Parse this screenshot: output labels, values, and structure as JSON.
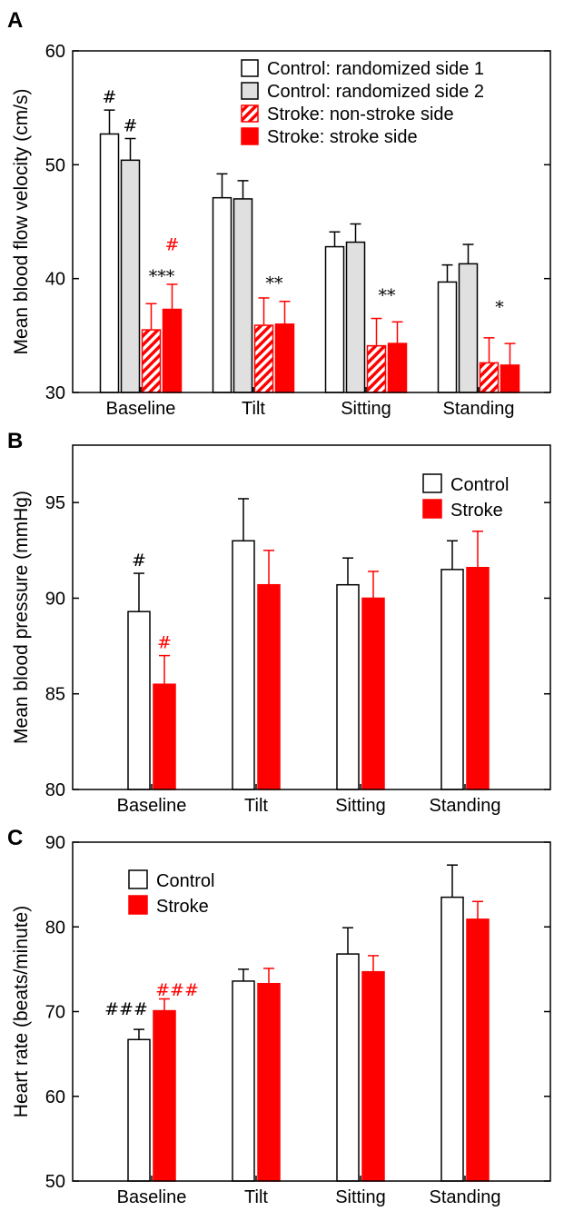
{
  "colors": {
    "control_fill": "#ffffff",
    "control2_fill": "#e0e0e0",
    "stroke": "#ff0000",
    "axis": "#000000"
  },
  "chart_data": [
    {
      "panel_label": "A",
      "type": "bar",
      "ylabel": "Mean blood flow velocity (cm/s)",
      "ylim": [
        30,
        60
      ],
      "yticks": [
        30,
        40,
        50,
        60
      ],
      "categories": [
        "Baseline",
        "Tilt",
        "Sitting",
        "Standing"
      ],
      "legend_position": "top-right",
      "series": [
        {
          "name": "Control: randomized side 1",
          "style": "control",
          "values": [
            52.7,
            47.1,
            42.8,
            39.7
          ],
          "errors": [
            2.1,
            2.1,
            1.3,
            1.5
          ]
        },
        {
          "name": "Control: randomized side 2",
          "style": "control2",
          "values": [
            50.4,
            47.0,
            43.2,
            41.3
          ],
          "errors": [
            1.9,
            1.6,
            1.6,
            1.7
          ]
        },
        {
          "name": "Stroke: non-stroke side",
          "style": "hatched",
          "values": [
            35.5,
            35.9,
            34.1,
            32.6
          ],
          "errors": [
            2.3,
            2.4,
            2.4,
            2.2
          ]
        },
        {
          "name": "Stroke: stroke side",
          "style": "stroke",
          "values": [
            37.3,
            36.0,
            34.3,
            32.4
          ],
          "errors": [
            2.2,
            2.0,
            1.9,
            1.9
          ]
        }
      ],
      "annotations": [
        {
          "text": "#",
          "category": 0,
          "series": 0,
          "color": "black"
        },
        {
          "text": "#",
          "category": 0,
          "series": 1,
          "color": "black"
        },
        {
          "text": "#",
          "category": 0,
          "series": 3,
          "value": 42.5,
          "color": "red"
        },
        {
          "text": "***",
          "category": 0,
          "series": 2.5,
          "value": 39.7,
          "color": "black"
        },
        {
          "text": "**",
          "category": 1,
          "series": 2.5,
          "value": 39.1,
          "color": "black"
        },
        {
          "text": "**",
          "category": 2,
          "series": 2.5,
          "value": 38.0,
          "color": "black"
        },
        {
          "text": "*",
          "category": 3,
          "series": 2.5,
          "value": 37.0,
          "color": "black"
        }
      ]
    },
    {
      "panel_label": "B",
      "type": "bar",
      "ylabel": "Mean blood pressure (mmHg)",
      "ylim": [
        80,
        98
      ],
      "yticks": [
        80,
        85,
        90,
        95
      ],
      "categories": [
        "Baseline",
        "Tilt",
        "Sitting",
        "Standing"
      ],
      "legend_position": "top-right",
      "series": [
        {
          "name": "Control",
          "style": "control",
          "values": [
            89.3,
            93.0,
            90.7,
            91.5
          ],
          "errors": [
            2.0,
            2.2,
            1.4,
            1.5
          ]
        },
        {
          "name": "Stroke",
          "style": "stroke",
          "values": [
            85.5,
            90.7,
            90.0,
            91.6
          ],
          "errors": [
            1.5,
            1.8,
            1.4,
            1.9
          ]
        }
      ],
      "annotations": [
        {
          "text": "#",
          "category": 0,
          "series": 0,
          "color": "black"
        },
        {
          "text": "#",
          "category": 0,
          "series": 1,
          "color": "red"
        }
      ]
    },
    {
      "panel_label": "C",
      "type": "bar",
      "ylabel": "Heart rate (beats/minute)",
      "ylim": [
        50,
        90
      ],
      "yticks": [
        50,
        60,
        70,
        80,
        90
      ],
      "categories": [
        "Baseline",
        "Tilt",
        "Sitting",
        "Standing"
      ],
      "legend_position": "top-left",
      "series": [
        {
          "name": "Control",
          "style": "control",
          "values": [
            66.7,
            73.6,
            76.8,
            83.5
          ],
          "errors": [
            1.2,
            1.4,
            3.1,
            3.8
          ]
        },
        {
          "name": "Stroke",
          "style": "stroke",
          "values": [
            70.1,
            73.3,
            74.7,
            80.9
          ],
          "errors": [
            1.4,
            1.8,
            1.9,
            2.1
          ]
        }
      ],
      "annotations": [
        {
          "text": "###",
          "category": 0,
          "series": -0.5,
          "value": 69.6,
          "color": "black"
        },
        {
          "text": "###",
          "category": 0,
          "series": 1.5,
          "value": 71.9,
          "color": "red"
        }
      ]
    }
  ]
}
